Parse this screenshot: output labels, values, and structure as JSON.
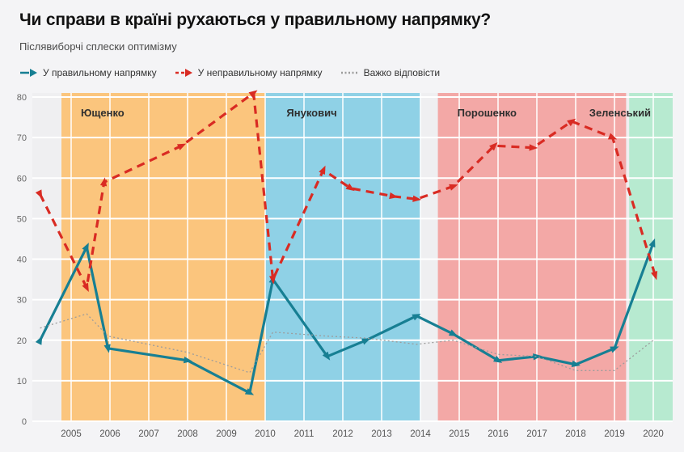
{
  "page": {
    "background": "#f4f4f6"
  },
  "header": {
    "title": "Чи справи в країні рухаються у правильному напрямку?",
    "subtitle": "Післявиборчі сплески оптимізму"
  },
  "chart_data": {
    "type": "line",
    "title": "Чи справи в країні рухаються у правильному напрямку?",
    "subtitle": "Післявиборчі сплески оптимізму",
    "plot_bg": "#efeff1",
    "grid": true,
    "grid_color": "#ffffff",
    "legend_position": "top",
    "x_domain": [
      2004.0,
      2020.5
    ],
    "y_domain": [
      0,
      81
    ],
    "x_ticks": [
      2005,
      2006,
      2007,
      2008,
      2009,
      2010,
      2011,
      2012,
      2013,
      2014,
      2015,
      2016,
      2017,
      2018,
      2019,
      2020
    ],
    "y_ticks": [
      0,
      10,
      20,
      30,
      40,
      50,
      60,
      70,
      80
    ],
    "bands": [
      {
        "label": "Ющенко",
        "from": 2004.75,
        "to": 2010.0,
        "color": "#fbc57d",
        "label_x": 2005.25
      },
      {
        "label": "Янукович",
        "from": 2010.0,
        "to": 2014.0,
        "color": "#8fd1e6",
        "label_x": 2010.55
      },
      {
        "label": "Порошенко",
        "from": 2014.45,
        "to": 2019.3,
        "color": "#f3a8a6",
        "label_x": 2014.95
      },
      {
        "label": "Зеленський",
        "from": 2019.38,
        "to": 2020.5,
        "color": "#b7ead0",
        "label_x": 2018.35
      }
    ],
    "band_label_color": "#2f2f2f",
    "axis_label_color": "#666666",
    "series": [
      {
        "name": "У правильному напрямку",
        "color": "#177f93",
        "style": "solid",
        "width": 3.2,
        "markers": "arrow",
        "points": [
          [
            2004.2,
            20
          ],
          [
            2005.4,
            43
          ],
          [
            2005.95,
            18
          ],
          [
            2008.0,
            15
          ],
          [
            2009.6,
            7
          ],
          [
            2010.2,
            35
          ],
          [
            2011.6,
            16
          ],
          [
            2012.6,
            20
          ],
          [
            2013.9,
            26
          ],
          [
            2014.85,
            21.5
          ],
          [
            2016.0,
            15
          ],
          [
            2017.0,
            16
          ],
          [
            2018.0,
            14
          ],
          [
            2019.0,
            18
          ],
          [
            2020.0,
            44
          ]
        ]
      },
      {
        "name": "У неправильному напрямку",
        "color": "#d92b23",
        "style": "dashed",
        "width": 3.2,
        "markers": "arrow",
        "points": [
          [
            2004.2,
            56
          ],
          [
            2005.4,
            33
          ],
          [
            2005.85,
            59
          ],
          [
            2007.85,
            68
          ],
          [
            2009.7,
            81
          ],
          [
            2010.2,
            35
          ],
          [
            2011.5,
            62
          ],
          [
            2012.2,
            57.5
          ],
          [
            2013.3,
            55.5
          ],
          [
            2013.9,
            54.8
          ],
          [
            2014.85,
            58
          ],
          [
            2015.9,
            68
          ],
          [
            2016.9,
            67.5
          ],
          [
            2017.9,
            74
          ],
          [
            2018.95,
            70
          ],
          [
            2020.05,
            36
          ]
        ]
      },
      {
        "name": "Важко відповісти",
        "color": "#9c9c9c",
        "style": "dotted",
        "width": 1.3,
        "markers": "none",
        "points": [
          [
            2004.2,
            23
          ],
          [
            2005.4,
            26.5
          ],
          [
            2005.95,
            21
          ],
          [
            2008.0,
            17
          ],
          [
            2009.6,
            12
          ],
          [
            2010.2,
            22
          ],
          [
            2011.6,
            21
          ],
          [
            2012.6,
            20.5
          ],
          [
            2013.9,
            19
          ],
          [
            2014.85,
            20
          ],
          [
            2016.0,
            16.5
          ],
          [
            2017.0,
            16
          ],
          [
            2018.0,
            12.5
          ],
          [
            2019.0,
            12.5
          ],
          [
            2020.0,
            20
          ]
        ]
      }
    ]
  }
}
